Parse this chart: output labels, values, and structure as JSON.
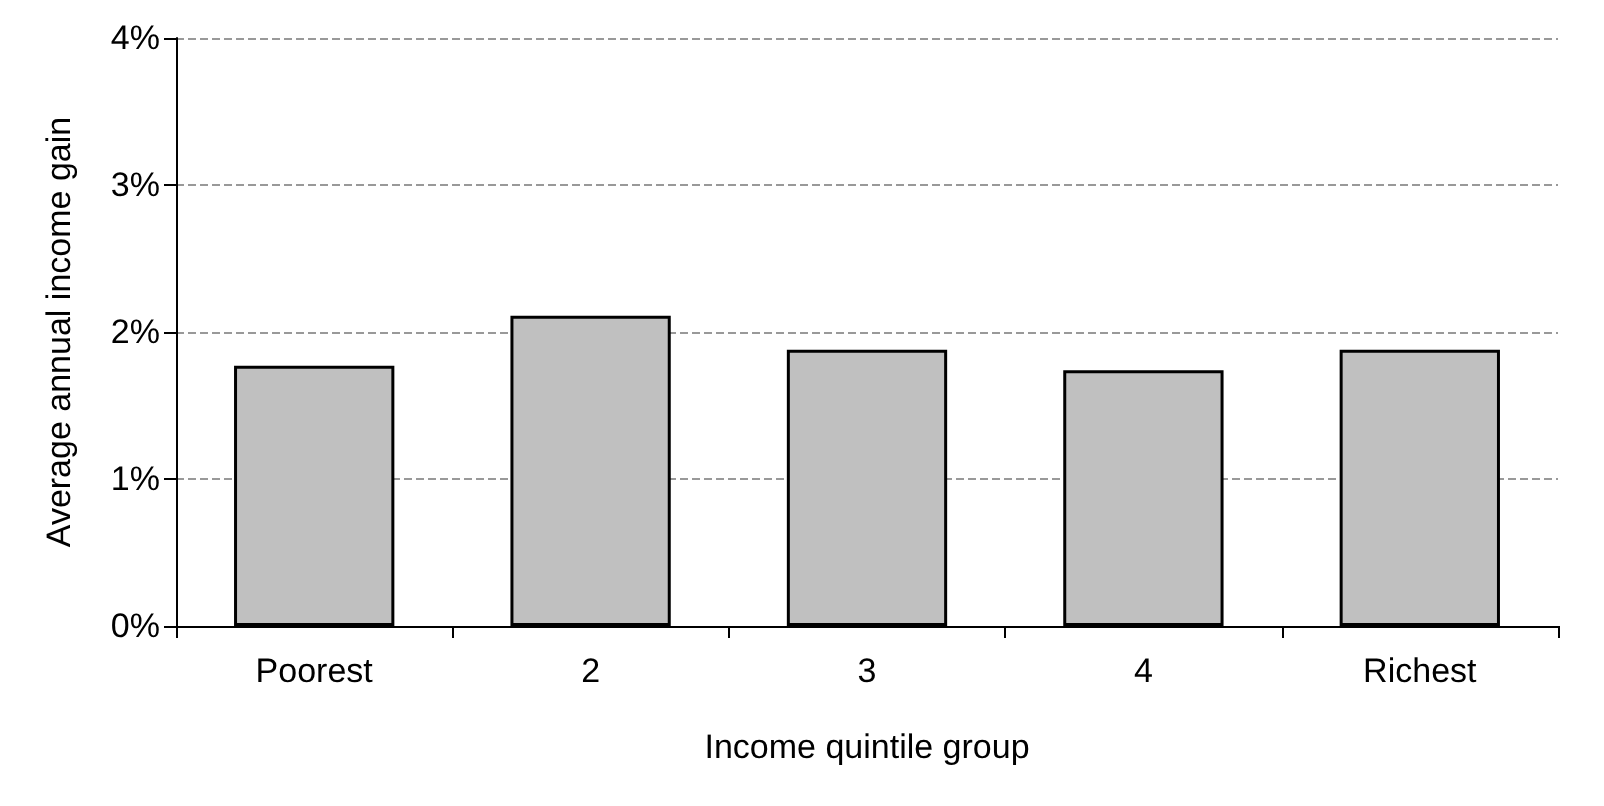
{
  "chart_data": {
    "type": "bar",
    "xlabel": "Income quintile group",
    "ylabel": "Average annual income gain",
    "categories": [
      "Poorest",
      "2",
      "3",
      "4",
      "Richest"
    ],
    "values": [
      1.77,
      2.11,
      1.88,
      1.74,
      1.88
    ],
    "color": "#c0c0c0",
    "ylim": [
      0,
      4
    ],
    "yticks": [
      {
        "value": 0,
        "label": "0%"
      },
      {
        "value": 1,
        "label": "1%"
      },
      {
        "value": 2,
        "label": "2%"
      },
      {
        "value": 3,
        "label": "3%"
      },
      {
        "value": 4,
        "label": "4%"
      }
    ],
    "grid": "y"
  }
}
